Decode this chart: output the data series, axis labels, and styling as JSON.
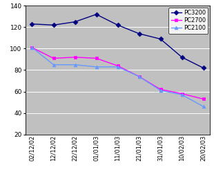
{
  "x_labels": [
    "02/12/02",
    "12/12/02",
    "22/12/02",
    "01/01/03",
    "11/01/03",
    "21/01/03",
    "31/01/03",
    "10/02/03",
    "20/02/03"
  ],
  "pc3200": [
    123,
    122,
    125,
    132,
    122,
    114,
    109,
    92,
    82
  ],
  "pc2700": [
    101,
    91,
    92,
    91,
    84,
    74,
    62,
    58,
    53
  ],
  "pc2100": [
    101,
    85,
    85,
    83,
    83,
    74,
    61,
    57,
    46
  ],
  "ylim": [
    20,
    140
  ],
  "yticks": [
    20,
    40,
    60,
    80,
    100,
    120,
    140
  ],
  "color_pc3200": "#000080",
  "color_pc2700": "#FF00FF",
  "color_pc2100": "#6699FF",
  "bg_color": "#C0C0C0",
  "plot_bg_color": "#C0C0C0",
  "fig_bg_color": "#FFFFFF",
  "legend_labels": [
    "PC3200",
    "PC2700",
    "PC2100"
  ]
}
